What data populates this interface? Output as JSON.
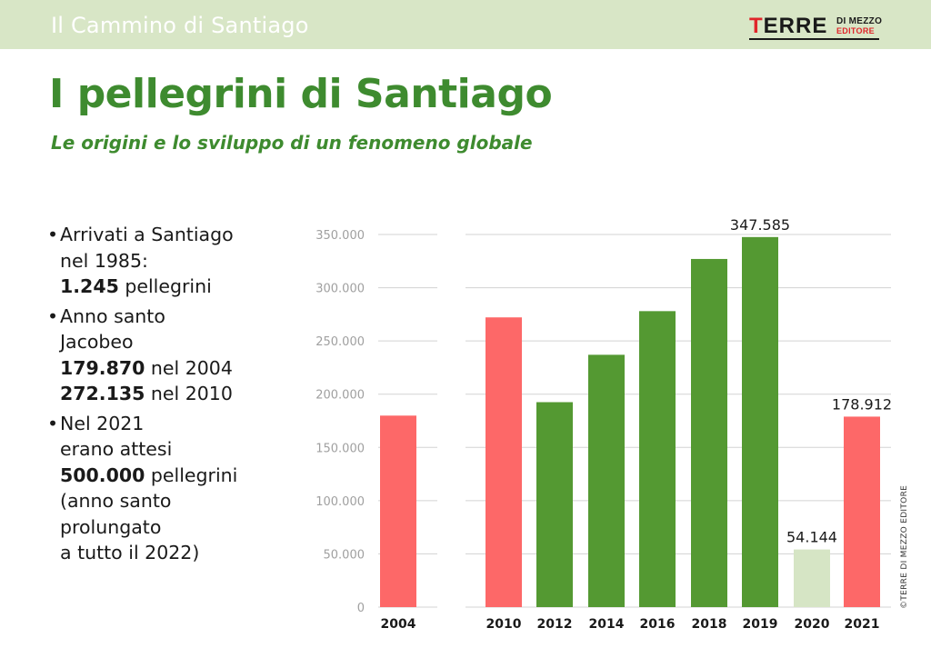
{
  "header": {
    "section_title": "Il Cammino di Santiago",
    "logo": {
      "main": "TERRE",
      "sub1": "DI MEZZO",
      "sub2": "EDITORE"
    }
  },
  "title": "I pellegrini di Santiago",
  "subtitle": "Le origini e lo sviluppo di un fenomeno globale",
  "notes": [
    {
      "lines": [
        [
          {
            "t": "Arrivati a Santiago",
            "b": false
          }
        ],
        [
          {
            "t": "nel 1985:",
            "b": false
          }
        ],
        [
          {
            "t": "1.245",
            "b": true
          },
          {
            "t": " pellegrini",
            "b": false
          }
        ]
      ]
    },
    {
      "lines": [
        [
          {
            "t": "Anno santo",
            "b": false
          }
        ],
        [
          {
            "t": "Jacobeo",
            "b": false
          }
        ],
        [
          {
            "t": "179.870",
            "b": true
          },
          {
            "t": " nel 2004",
            "b": false
          }
        ],
        [
          {
            "t": "272.135",
            "b": true
          },
          {
            "t": " nel 2010",
            "b": false
          }
        ]
      ]
    },
    {
      "lines": [
        [
          {
            "t": "Nel 2021",
            "b": false
          }
        ],
        [
          {
            "t": "erano attesi",
            "b": false
          }
        ],
        [
          {
            "t": "500.000",
            "b": true
          },
          {
            "t": " pellegrini",
            "b": false
          }
        ],
        [
          {
            "t": "(anno santo",
            "b": false
          }
        ],
        [
          {
            "t": "prolungato",
            "b": false
          }
        ],
        [
          {
            "t": "a tutto il 2022)",
            "b": false
          }
        ]
      ]
    }
  ],
  "copyright": "©TERRE DI MEZZO EDITORE",
  "colors": {
    "brand_green": "#3e8b2f",
    "bar_red": "#fd6868",
    "bar_green": "#549932",
    "bar_light": "#d6e5c5",
    "header_bg": "#d8e6c6"
  },
  "chart_data": {
    "type": "bar",
    "categories": [
      "2004",
      "2010",
      "2012",
      "2014",
      "2016",
      "2018",
      "2019",
      "2020",
      "2021"
    ],
    "values": [
      179870,
      272135,
      192500,
      237000,
      278000,
      327000,
      347585,
      54144,
      178912
    ],
    "bar_colors": [
      "#fd6868",
      "#fd6868",
      "#549932",
      "#549932",
      "#549932",
      "#549932",
      "#549932",
      "#d6e5c5",
      "#fd6868"
    ],
    "data_labels": [
      "",
      "",
      "",
      "",
      "",
      "",
      "347.585",
      "54.144",
      "178.912"
    ],
    "y_ticks": [
      0,
      50000,
      100000,
      150000,
      200000,
      250000,
      300000,
      350000
    ],
    "y_tick_labels": [
      "0",
      "50.000",
      "100.000",
      "150.000",
      "200.000",
      "250.000",
      "300.000",
      "350.000"
    ],
    "ylim": [
      0,
      350000
    ],
    "grid": true,
    "xlabel": "",
    "ylabel": ""
  }
}
